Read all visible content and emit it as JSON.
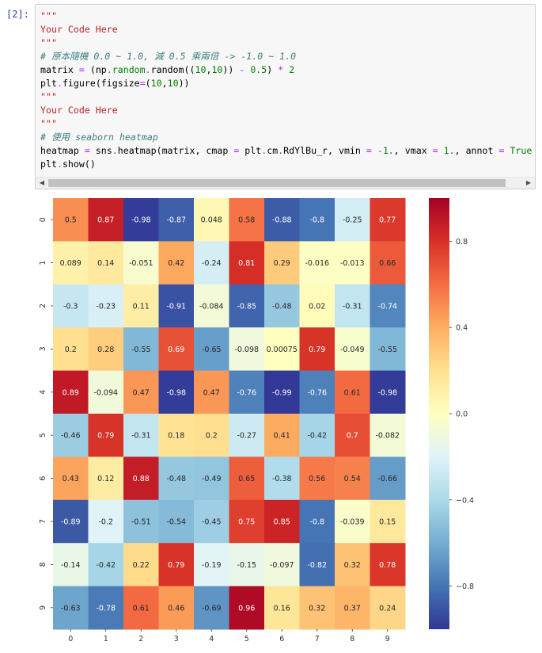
{
  "cell": {
    "prompt": "[2]:",
    "code_lines": [
      [
        {
          "t": "\"\"\"",
          "c": "str"
        }
      ],
      [
        {
          "t": "Your Code Here",
          "c": "str"
        }
      ],
      [
        {
          "t": "\"\"\"",
          "c": "str"
        }
      ],
      [
        {
          "t": "# 原本隨機 0.0 ~ 1.0, 減 0.5 乘兩倍 -> -1.0 ~ 1.0",
          "c": "com"
        }
      ],
      [
        {
          "t": "matrix ",
          "c": ""
        },
        {
          "t": "=",
          "c": "op"
        },
        {
          "t": " (np",
          "c": ""
        },
        {
          "t": ".",
          "c": "op"
        },
        {
          "t": "random",
          "c": "kw"
        },
        {
          "t": ".",
          "c": "op"
        },
        {
          "t": "random((",
          "c": ""
        },
        {
          "t": "10",
          "c": "num"
        },
        {
          "t": ",",
          "c": ""
        },
        {
          "t": "10",
          "c": "num"
        },
        {
          "t": ")) ",
          "c": ""
        },
        {
          "t": "-",
          "c": "op"
        },
        {
          "t": " ",
          "c": ""
        },
        {
          "t": "0.5",
          "c": "num"
        },
        {
          "t": ") ",
          "c": ""
        },
        {
          "t": "*",
          "c": "op"
        },
        {
          "t": " ",
          "c": ""
        },
        {
          "t": "2",
          "c": "num"
        }
      ],
      [
        {
          "t": "plt",
          "c": ""
        },
        {
          "t": ".",
          "c": "op"
        },
        {
          "t": "figure(figsize",
          "c": ""
        },
        {
          "t": "=",
          "c": "op"
        },
        {
          "t": "(",
          "c": ""
        },
        {
          "t": "10",
          "c": "num"
        },
        {
          "t": ",",
          "c": ""
        },
        {
          "t": "10",
          "c": "num"
        },
        {
          "t": "))",
          "c": ""
        }
      ],
      [
        {
          "t": "\"\"\"",
          "c": "str"
        }
      ],
      [
        {
          "t": "Your Code Here",
          "c": "str"
        }
      ],
      [
        {
          "t": "\"\"\"",
          "c": "str"
        }
      ],
      [
        {
          "t": "# 使用 seaborn heatmap",
          "c": "com"
        }
      ],
      [
        {
          "t": "heatmap ",
          "c": ""
        },
        {
          "t": "=",
          "c": "op"
        },
        {
          "t": " sns",
          "c": ""
        },
        {
          "t": ".",
          "c": "op"
        },
        {
          "t": "heatmap(matrix, cmap ",
          "c": ""
        },
        {
          "t": "=",
          "c": "op"
        },
        {
          "t": " plt",
          "c": ""
        },
        {
          "t": ".",
          "c": "op"
        },
        {
          "t": "cm",
          "c": ""
        },
        {
          "t": ".",
          "c": "op"
        },
        {
          "t": "RdYlBu_r, vmin ",
          "c": ""
        },
        {
          "t": "=",
          "c": "op"
        },
        {
          "t": " ",
          "c": ""
        },
        {
          "t": "-",
          "c": "op"
        },
        {
          "t": "1.",
          "c": "num"
        },
        {
          "t": ", vmax ",
          "c": ""
        },
        {
          "t": "=",
          "c": "op"
        },
        {
          "t": " ",
          "c": ""
        },
        {
          "t": "1.",
          "c": "num"
        },
        {
          "t": ", annot ",
          "c": ""
        },
        {
          "t": "=",
          "c": "op"
        },
        {
          "t": " ",
          "c": ""
        },
        {
          "t": "True",
          "c": "kw"
        }
      ],
      [
        {
          "t": "plt",
          "c": ""
        },
        {
          "t": ".",
          "c": "op"
        },
        {
          "t": "show()",
          "c": ""
        }
      ]
    ],
    "scroll_left_icon": "triangle-left",
    "scroll_right_icon": "triangle-right"
  },
  "chart_data": {
    "type": "heatmap",
    "colormap": "RdYlBu_r",
    "vmin": -1.0,
    "vmax": 1.0,
    "x_tick_labels": [
      "0",
      "1",
      "2",
      "3",
      "4",
      "5",
      "6",
      "7",
      "8",
      "9"
    ],
    "y_tick_labels": [
      "0",
      "1",
      "2",
      "3",
      "4",
      "5",
      "6",
      "7",
      "8",
      "9"
    ],
    "colorbar_ticks": [
      0.8,
      0.4,
      0.0,
      -0.4,
      -0.8
    ],
    "colorbar_tick_labels": [
      "0.8",
      "0.4",
      "0.0",
      "−0.4",
      "−0.8"
    ],
    "values": [
      [
        0.5,
        0.87,
        -0.98,
        -0.87,
        0.048,
        0.58,
        -0.88,
        -0.8,
        -0.25,
        0.77
      ],
      [
        0.089,
        0.14,
        -0.051,
        0.42,
        -0.24,
        0.81,
        0.29,
        -0.016,
        -0.013,
        0.66
      ],
      [
        -0.3,
        -0.23,
        0.11,
        -0.91,
        -0.084,
        -0.85,
        -0.48,
        0.02,
        -0.31,
        -0.74
      ],
      [
        0.2,
        0.28,
        -0.55,
        0.69,
        -0.65,
        -0.098,
        0.00075,
        0.79,
        -0.049,
        -0.55
      ],
      [
        0.89,
        -0.094,
        0.47,
        -0.98,
        0.47,
        -0.76,
        -0.99,
        -0.76,
        0.61,
        -0.98
      ],
      [
        -0.46,
        0.79,
        -0.31,
        0.18,
        0.2,
        -0.27,
        0.41,
        -0.42,
        0.7,
        -0.082
      ],
      [
        0.43,
        0.12,
        0.88,
        -0.48,
        -0.49,
        0.65,
        -0.38,
        0.56,
        0.54,
        -0.66
      ],
      [
        -0.89,
        -0.2,
        -0.51,
        -0.54,
        -0.45,
        0.75,
        0.85,
        -0.8,
        -0.039,
        0.15
      ],
      [
        -0.14,
        -0.42,
        0.22,
        0.79,
        -0.19,
        -0.15,
        -0.097,
        -0.82,
        0.32,
        0.78
      ],
      [
        -0.63,
        -0.78,
        0.61,
        0.46,
        -0.69,
        0.96,
        0.16,
        0.32,
        0.37,
        0.24
      ]
    ],
    "annotations": [
      [
        "0.5",
        "0.87",
        "-0.98",
        "-0.87",
        "0.048",
        "0.58",
        "-0.88",
        "-0.8",
        "-0.25",
        "0.77"
      ],
      [
        "0.089",
        "0.14",
        "-0.051",
        "0.42",
        "-0.24",
        "0.81",
        "0.29",
        "-0.016",
        "-0.013",
        "0.66"
      ],
      [
        "-0.3",
        "-0.23",
        "0.11",
        "-0.91",
        "-0.084",
        "-0.85",
        "-0.48",
        "0.02",
        "-0.31",
        "-0.74"
      ],
      [
        "0.2",
        "0.28",
        "-0.55",
        "0.69",
        "-0.65",
        "-0.098",
        "0.00075",
        "0.79",
        "-0.049",
        "-0.55"
      ],
      [
        "0.89",
        "-0.094",
        "0.47",
        "-0.98",
        "0.47",
        "-0.76",
        "-0.99",
        "-0.76",
        "0.61",
        "-0.98"
      ],
      [
        "-0.46",
        "0.79",
        "-0.31",
        "0.18",
        "0.2",
        "-0.27",
        "0.41",
        "-0.42",
        "0.7",
        "-0.082"
      ],
      [
        "0.43",
        "0.12",
        "0.88",
        "-0.48",
        "-0.49",
        "0.65",
        "-0.38",
        "0.56",
        "0.54",
        "-0.66"
      ],
      [
        "-0.89",
        "-0.2",
        "-0.51",
        "-0.54",
        "-0.45",
        "0.75",
        "0.85",
        "-0.8",
        "-0.039",
        "0.15"
      ],
      [
        "-0.14",
        "-0.42",
        "0.22",
        "0.79",
        "-0.19",
        "-0.15",
        "-0.097",
        "-0.82",
        "0.32",
        "0.78"
      ],
      [
        "-0.63",
        "-0.78",
        "0.61",
        "0.46",
        "-0.69",
        "0.96",
        "0.16",
        "0.32",
        "0.37",
        "0.24"
      ]
    ],
    "title": "",
    "xlabel": "",
    "ylabel": ""
  }
}
